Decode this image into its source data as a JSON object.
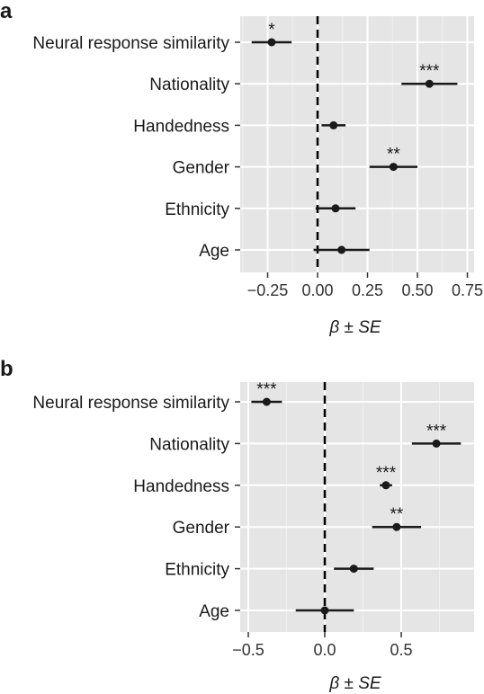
{
  "chart_data": [
    {
      "panel": "a",
      "type": "scatter",
      "categories": [
        "Neural response similarity",
        "Nationality",
        "Handedness",
        "Gender",
        "Ethnicity",
        "Age"
      ],
      "estimates": [
        -0.23,
        0.56,
        0.08,
        0.38,
        0.09,
        0.12
      ],
      "se": [
        0.1,
        0.14,
        0.06,
        0.12,
        0.1,
        0.14
      ],
      "significance": [
        "*",
        "***",
        "",
        "**",
        "",
        ""
      ],
      "xlabel": "β ± SE",
      "xlim": [
        -0.38,
        0.78
      ],
      "xticks": [
        -0.25,
        0.0,
        0.25,
        0.5,
        0.75
      ],
      "xtick_labels": [
        "−0.25",
        "0.00",
        "0.25",
        "0.50",
        "0.75"
      ],
      "reference_line": 0,
      "grid": true
    },
    {
      "panel": "b",
      "type": "scatter",
      "categories": [
        "Neural response similarity",
        "Nationality",
        "Handedness",
        "Gender",
        "Ethnicity",
        "Age"
      ],
      "estimates": [
        -0.38,
        0.73,
        0.4,
        0.47,
        0.19,
        0.0
      ],
      "se": [
        0.1,
        0.16,
        0.04,
        0.16,
        0.13,
        0.19
      ],
      "significance": [
        "***",
        "***",
        "***",
        "**",
        "",
        ""
      ],
      "xlabel": "β ± SE",
      "xlim": [
        -0.62,
        0.95
      ],
      "xticks": [
        -0.5,
        0.0,
        0.5
      ],
      "xtick_labels": [
        "−0.5",
        "0.0",
        "0.5"
      ],
      "reference_line": 0,
      "grid": true
    }
  ]
}
